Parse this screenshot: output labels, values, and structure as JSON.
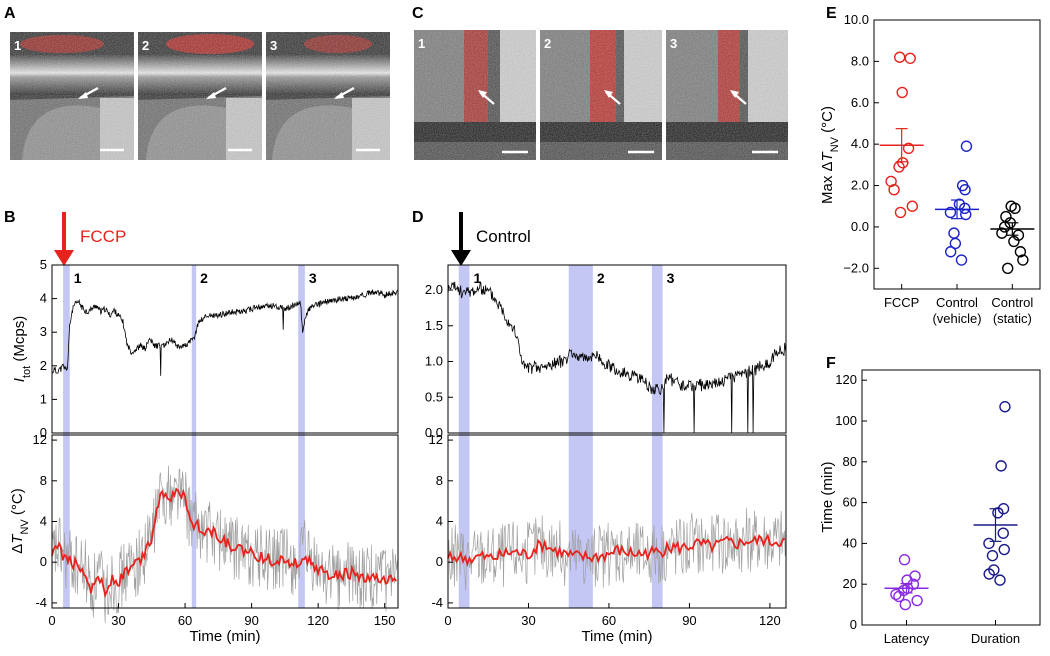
{
  "panel_labels": {
    "A": "A",
    "B": "B",
    "C": "C",
    "D": "D",
    "E": "E",
    "F": "F"
  },
  "colors": {
    "red": "#e8221c",
    "blue": "#1a22c8",
    "black": "#000000",
    "purple": "#8a2be2",
    "navy": "#1a1a8c",
    "shade": "#c4c7f4",
    "gray": "#a0a0a0"
  },
  "micrographs": {
    "A": {
      "frames": [
        "1",
        "2",
        "3"
      ]
    },
    "C": {
      "frames": [
        "1",
        "2",
        "3"
      ]
    }
  },
  "annotations": {
    "B_arrow": "FCCP",
    "D_arrow": "Control"
  },
  "chart_data": [
    {
      "id": "B",
      "type": "line",
      "xlabel": "Time (min)",
      "xlim": [
        0,
        156
      ],
      "xticks": [
        0,
        30,
        60,
        90,
        120,
        150
      ],
      "shaded_windows": [
        {
          "label": "1",
          "x": [
            5,
            8
          ]
        },
        {
          "label": "2",
          "x": [
            63,
            65
          ]
        },
        {
          "label": "3",
          "x": [
            111,
            114
          ]
        }
      ],
      "top": {
        "ylabel_main": "I",
        "ylabel_sub": "tot",
        "ylabel_unit": " (Mcps)",
        "ylim": [
          0,
          5
        ],
        "yticks": [
          0,
          1,
          2,
          3,
          4,
          5
        ],
        "series": [
          {
            "x": [
              0,
              1,
              2,
              3,
              4,
              5,
              6,
              7,
              8,
              9,
              10,
              12,
              14,
              16,
              18,
              20,
              22,
              24,
              26,
              28,
              30,
              32,
              34,
              36,
              38,
              40,
              42,
              44,
              46,
              48,
              50,
              52,
              54,
              56,
              58,
              60,
              62,
              64,
              66,
              68,
              70,
              75,
              80,
              85,
              90,
              95,
              100,
              105,
              110,
              112,
              113,
              114,
              116,
              118,
              120,
              122,
              125,
              130,
              135,
              140,
              145,
              150,
              155
            ],
            "y": [
              1.8,
              1.9,
              1.8,
              1.9,
              1.9,
              2.0,
              1.9,
              1.95,
              3.2,
              3.6,
              3.8,
              3.9,
              3.7,
              3.6,
              3.7,
              3.8,
              3.6,
              3.7,
              3.5,
              3.65,
              3.5,
              3.3,
              2.6,
              2.4,
              2.5,
              2.6,
              2.5,
              2.8,
              2.6,
              2.6,
              2.6,
              2.7,
              2.8,
              2.6,
              2.6,
              2.6,
              2.7,
              2.8,
              3.3,
              3.4,
              3.5,
              3.5,
              3.6,
              3.6,
              3.7,
              3.75,
              3.8,
              3.7,
              3.8,
              3.9,
              3.0,
              3.4,
              3.7,
              3.8,
              3.8,
              3.9,
              3.9,
              4.0,
              4.0,
              4.1,
              4.2,
              4.1,
              4.2
            ]
          }
        ]
      },
      "bottom": {
        "ylabel_main": "Δ",
        "ylabel_italic": "T",
        "ylabel_sub": "NV",
        "ylabel_unit": " (°C)",
        "ylim": [
          -4.5,
          12.5
        ],
        "yticks": [
          -4,
          0,
          4,
          8,
          12
        ],
        "series": [
          {
            "x": [
              0,
              3,
              6,
              9,
              12,
              15,
              18,
              21,
              24,
              27,
              30,
              33,
              36,
              39,
              42,
              45,
              48,
              51,
              54,
              57,
              60,
              63,
              66,
              69,
              72,
              75,
              78,
              81,
              84,
              87,
              90,
              93,
              96,
              99,
              102,
              105,
              108,
              111,
              114,
              117,
              120,
              123,
              126,
              129,
              132,
              135,
              138,
              141,
              144,
              147,
              150,
              153,
              156
            ],
            "y": [
              0.5,
              1.5,
              0.3,
              0.0,
              -0.5,
              -0.8,
              -2.8,
              -1.0,
              -3.2,
              -1.5,
              -2.0,
              -1.0,
              -0.5,
              0.0,
              1.0,
              2.5,
              6.0,
              7.0,
              6.5,
              7.5,
              6.0,
              4.0,
              3.5,
              3.0,
              3.0,
              2.5,
              2.0,
              1.5,
              1.2,
              1.0,
              0.8,
              0.5,
              0.5,
              0.2,
              0.3,
              0.2,
              0.0,
              -0.2,
              1.0,
              -0.5,
              -0.8,
              -1.0,
              -1.2,
              -1.5,
              -1.2,
              -1.0,
              -1.5,
              -1.8,
              -1.5,
              -1.8,
              -2.0,
              -1.8,
              -1.7
            ]
          }
        ]
      }
    },
    {
      "id": "D",
      "type": "line",
      "xlabel": "Time (min)",
      "xlim": [
        0,
        126
      ],
      "xticks": [
        0,
        30,
        60,
        90,
        120
      ],
      "shaded_windows": [
        {
          "label": "1",
          "x": [
            4,
            8
          ]
        },
        {
          "label": "2",
          "x": [
            45,
            54
          ]
        },
        {
          "label": "3",
          "x": [
            76,
            80
          ]
        }
      ],
      "top": {
        "ylim": [
          0,
          2.35
        ],
        "yticks": [
          0.0,
          0.5,
          1.0,
          1.5,
          2.0
        ],
        "series": [
          {
            "x": [
              0,
              2,
              4,
              6,
              8,
              10,
              12,
              14,
              16,
              18,
              20,
              22,
              24,
              26,
              28,
              30,
              32,
              34,
              36,
              38,
              40,
              42,
              44,
              46,
              48,
              50,
              52,
              54,
              56,
              58,
              60,
              62,
              64,
              66,
              68,
              70,
              72,
              74,
              76,
              78,
              80,
              82,
              84,
              86,
              88,
              90,
              92,
              94,
              96,
              98,
              100,
              102,
              104,
              106,
              108,
              110,
              112,
              114,
              116,
              118,
              120,
              122,
              124,
              126
            ],
            "y": [
              2.0,
              2.05,
              2.0,
              1.95,
              1.98,
              2.0,
              2.02,
              2.0,
              1.95,
              1.85,
              1.75,
              1.6,
              1.5,
              1.3,
              0.95,
              0.9,
              0.92,
              0.9,
              0.92,
              0.95,
              0.98,
              1.0,
              1.05,
              1.1,
              1.1,
              1.05,
              1.05,
              1.1,
              1.05,
              1.0,
              0.95,
              0.9,
              0.85,
              0.85,
              0.8,
              0.78,
              0.75,
              0.7,
              0.6,
              0.62,
              0.6,
              0.8,
              0.72,
              0.68,
              0.65,
              0.67,
              0.66,
              0.67,
              0.68,
              0.7,
              0.72,
              0.72,
              0.75,
              0.78,
              0.8,
              0.82,
              0.85,
              0.88,
              0.92,
              0.95,
              1.0,
              1.1,
              1.15,
              1.18
            ]
          }
        ]
      },
      "bottom": {
        "ylim": [
          -4.5,
          12.5
        ],
        "yticks": [
          -4,
          0,
          4,
          8,
          12
        ],
        "series": [
          {
            "x": [
              0,
              3,
              6,
              9,
              12,
              15,
              18,
              21,
              24,
              27,
              30,
              33,
              36,
              39,
              42,
              45,
              48,
              51,
              54,
              57,
              60,
              63,
              66,
              69,
              72,
              75,
              78,
              81,
              84,
              87,
              90,
              93,
              96,
              99,
              102,
              105,
              108,
              111,
              114,
              117,
              120,
              123,
              126
            ],
            "y": [
              0.3,
              0.5,
              0.4,
              0.3,
              0.6,
              0.4,
              0.5,
              0.8,
              1.0,
              0.9,
              0.7,
              1.5,
              1.8,
              1.2,
              1.0,
              0.7,
              0.6,
              0.5,
              0.5,
              0.6,
              0.8,
              1.2,
              1.0,
              0.9,
              0.8,
              1.0,
              1.0,
              1.2,
              1.5,
              1.4,
              1.6,
              1.8,
              1.7,
              1.5,
              1.9,
              2.0,
              1.8,
              2.1,
              2.0,
              2.3,
              2.0,
              2.1,
              2.0
            ]
          }
        ]
      }
    },
    {
      "id": "E",
      "type": "scatter",
      "ylabel": "Max Δ",
      "ylabel_italic": "T",
      "ylabel_sub": "NV",
      "ylabel_unit": " (°C)",
      "ylim": [
        -3,
        10
      ],
      "yticks": [
        "−2.0",
        "0.0",
        "2.0",
        "4.0",
        "6.0",
        "8.0",
        "10.0"
      ],
      "ytick_values": [
        -2,
        0,
        2,
        4,
        6,
        8,
        10
      ],
      "categories": [
        "FCCP",
        "Control (vehicle)",
        "Control (static)"
      ],
      "category_lines": [
        [
          "FCCP"
        ],
        [
          "Control",
          "(vehicle)"
        ],
        [
          "Control",
          "(static)"
        ]
      ],
      "groups": [
        {
          "points": [
            8.2,
            8.15,
            6.5,
            3.8,
            3.1,
            2.9,
            2.2,
            1.8,
            1.0,
            0.7
          ],
          "mean": 3.95,
          "sem": 0.8
        },
        {
          "points": [
            3.9,
            2.0,
            1.8,
            1.1,
            0.9,
            0.7,
            0.6,
            -0.3,
            -0.8,
            -1.2,
            -1.6
          ],
          "mean": 0.85,
          "sem": 0.45
        },
        {
          "points": [
            1.0,
            0.9,
            0.5,
            0.2,
            0.0,
            -0.3,
            -0.4,
            -0.7,
            -1.2,
            -1.6,
            -2.0
          ],
          "mean": -0.1,
          "sem": 0.3
        }
      ]
    },
    {
      "id": "F",
      "type": "scatter",
      "ylabel": "Time (min)",
      "ylim": [
        0,
        125
      ],
      "yticks": [
        0,
        20,
        40,
        60,
        80,
        100,
        120
      ],
      "categories": [
        "Latency",
        "Duration"
      ],
      "groups": [
        {
          "points": [
            32,
            24,
            22,
            20,
            18,
            17,
            15,
            14,
            12,
            10
          ],
          "mean": 18,
          "sem": 2.3
        },
        {
          "points": [
            107,
            78,
            57,
            55,
            45,
            40,
            37,
            34,
            27,
            25,
            22
          ],
          "mean": 49,
          "sem": 8
        }
      ]
    }
  ]
}
